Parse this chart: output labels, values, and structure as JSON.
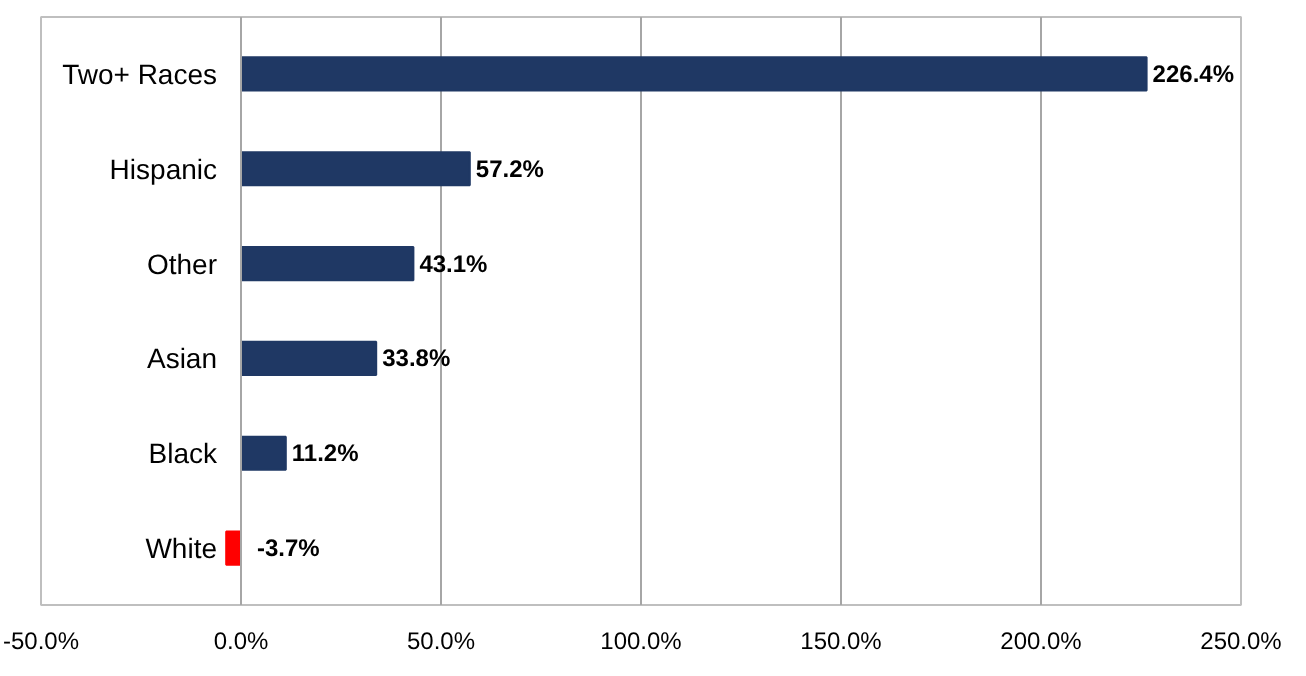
{
  "chart_data": {
    "type": "bar",
    "orientation": "horizontal",
    "categories": [
      "Two+ Races",
      "Hispanic",
      "Other",
      "Asian",
      "Black",
      "White"
    ],
    "values": [
      226.4,
      57.2,
      43.1,
      33.8,
      11.2,
      -3.7
    ],
    "colors": [
      "#1f3864",
      "#1f3864",
      "#1f3864",
      "#1f3864",
      "#1f3864",
      "#ff0000"
    ],
    "value_labels": [
      "226.4%",
      "57.2%",
      "43.1%",
      "33.8%",
      "11.2%",
      "-3.7%"
    ],
    "xlim": [
      -50,
      250
    ],
    "xticks": [
      {
        "value": -50,
        "label": "-50.0%"
      },
      {
        "value": 0,
        "label": "0.0%"
      },
      {
        "value": 50,
        "label": "50.0%"
      },
      {
        "value": 100,
        "label": "100.0%"
      },
      {
        "value": 150,
        "label": "150.0%"
      },
      {
        "value": 200,
        "label": "200.0%"
      },
      {
        "value": 250,
        "label": "250.0%"
      }
    ],
    "grid": "x"
  }
}
